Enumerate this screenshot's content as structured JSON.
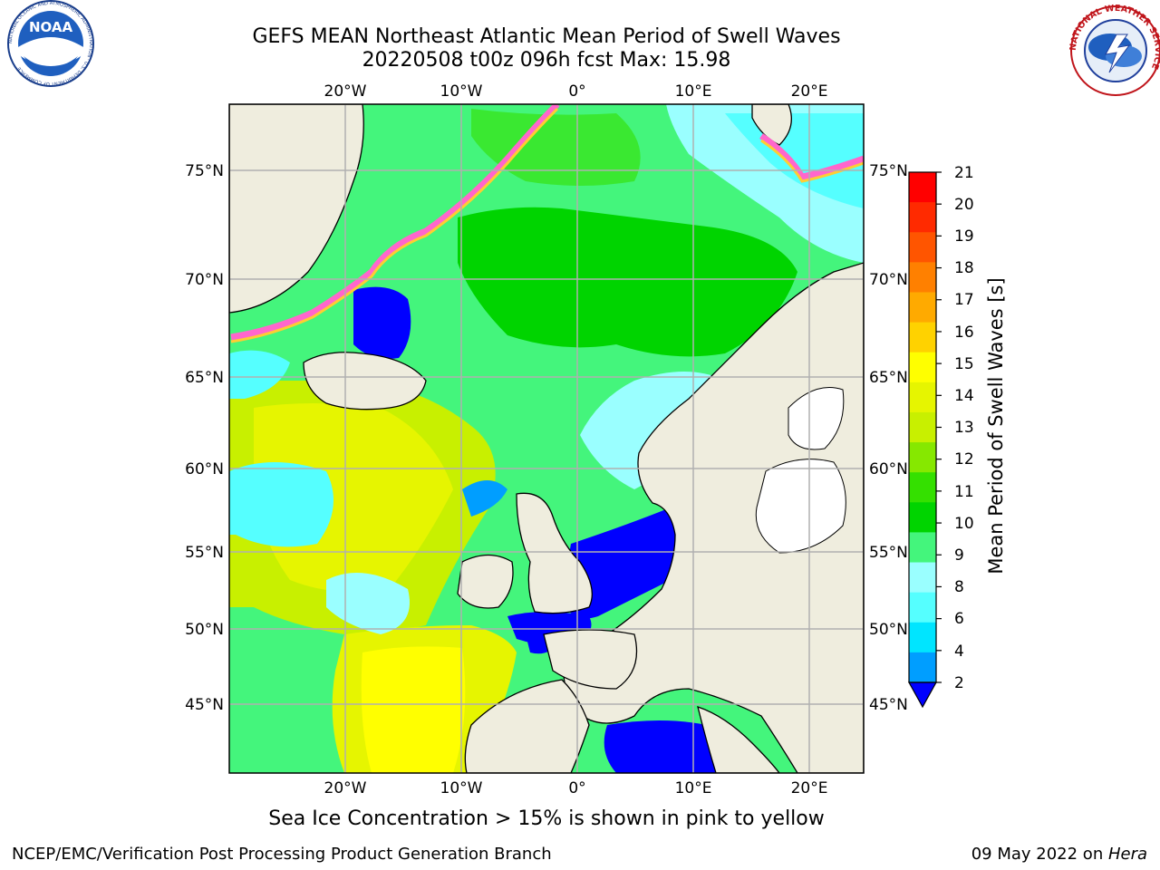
{
  "header": {
    "title_line1": "GEFS MEAN Northeast Atlantic Mean Period of Swell Waves",
    "title_line2": "20220508 t00z 096h fcst   Max: 15.98"
  },
  "logos": {
    "left": {
      "name": "NOAA",
      "label": "NOAA",
      "ring_text": "NATIONAL OCEANIC AND ATMOSPHERIC ADMINISTRATION · U.S. DEPARTMENT OF COMMERCE"
    },
    "right": {
      "name": "National Weather Service",
      "ring_text": "NATIONAL WEATHER SERVICE"
    }
  },
  "map": {
    "lon_labels_top": [
      "20°W",
      "10°W",
      "0°",
      "10°E",
      "20°E"
    ],
    "lon_labels_bottom": [
      "20°W",
      "10°W",
      "0°",
      "10°E",
      "20°E"
    ],
    "lat_labels_left": [
      "75°N",
      "70°N",
      "65°N",
      "60°N",
      "55°N",
      "50°N",
      "45°N"
    ],
    "lat_labels_right": [
      "75°N",
      "70°N",
      "65°N",
      "60°N",
      "55°N",
      "50°N",
      "45°N"
    ],
    "land_color": "#efedde",
    "grid_color": "#b0b0b0"
  },
  "colorbar": {
    "label": "Mean Period of Swell Waves [s]",
    "ticks": [
      "21",
      "20",
      "19",
      "18",
      "17",
      "16",
      "15",
      "14",
      "13",
      "12",
      "11",
      "10",
      "9",
      "8",
      "6",
      "4",
      "2"
    ],
    "colors_top_to_bottom": [
      "#ff0000",
      "#ff2a00",
      "#ff5500",
      "#ff8000",
      "#ffaa00",
      "#ffd200",
      "#ffff00",
      "#e6f500",
      "#c8f000",
      "#86e800",
      "#34e000",
      "#00d400",
      "#44f57c",
      "#9affff",
      "#55ffff",
      "#00e5ff",
      "#009eff"
    ],
    "under_color": "#0000ff"
  },
  "footer": {
    "ice_note": "Sea Ice Concentration > 15% is shown in pink to yellow",
    "credit": "NCEP/EMC/Verification Post Processing Product Generation Branch",
    "date_prefix": "09 May 2022 on ",
    "date_host": "Hera"
  }
}
